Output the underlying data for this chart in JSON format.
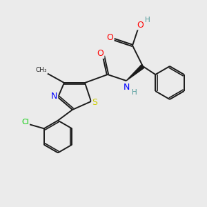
{
  "bg_color": "#ebebeb",
  "atom_colors": {
    "O": "#ff0000",
    "N": "#0000ff",
    "S": "#cccc00",
    "Cl": "#00cc00",
    "C": "#1a1a1a",
    "H": "#4d9999"
  },
  "bond_color": "#1a1a1a",
  "bond_width": 1.4,
  "fig_width": 3.0,
  "fig_height": 3.0,
  "dpi": 100
}
